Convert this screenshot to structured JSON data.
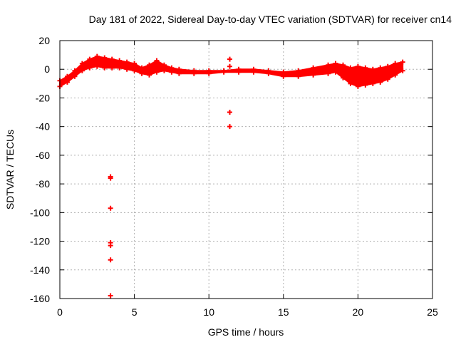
{
  "chart_data": {
    "type": "scatter",
    "title": "Day 181 of 2022, Sidereal Day-to-day VTEC variation (SDTVAR) for receiver cn14",
    "xlabel": "GPS time / hours",
    "ylabel": "SDTVAR / TECUs",
    "xlim": [
      0,
      25
    ],
    "ylim": [
      -160,
      20
    ],
    "xticks": [
      0,
      5,
      10,
      15,
      20,
      25
    ],
    "yticks": [
      -160,
      -140,
      -120,
      -100,
      -80,
      -60,
      -40,
      -20,
      0,
      20
    ],
    "grid": true,
    "marker": "plus",
    "color": "#ff0000",
    "series": [
      {
        "name": "SDTVAR band (min/max envelope)",
        "style": "band",
        "x": [
          0.0,
          0.5,
          1.0,
          1.5,
          2.0,
          2.5,
          3.0,
          3.5,
          4.0,
          4.5,
          5.0,
          5.5,
          6.0,
          6.5,
          7.0,
          7.5,
          8.0,
          9.0,
          10.0,
          11.0,
          12.0,
          13.0,
          14.0,
          15.0,
          16.0,
          17.0,
          18.0,
          18.5,
          19.0,
          19.5,
          20.0,
          20.5,
          21.0,
          21.5,
          22.0,
          22.5,
          23.0
        ],
        "upper": [
          -8,
          -5,
          -1,
          4,
          7,
          9,
          8,
          7,
          6,
          5,
          4,
          1,
          3,
          6,
          3,
          1,
          0,
          -1,
          -1,
          -1,
          0,
          0,
          -1,
          -2,
          -1,
          1,
          3,
          4,
          3,
          1,
          2,
          1,
          0,
          1,
          2,
          4,
          5
        ],
        "lower": [
          -12,
          -9,
          -5,
          -1,
          1,
          2,
          1,
          1,
          1,
          0,
          -1,
          -3,
          -4,
          -2,
          -1,
          -2,
          -3,
          -3,
          -3,
          -2,
          -2,
          -2,
          -3,
          -5,
          -5,
          -4,
          -3,
          -2,
          -6,
          -10,
          -12,
          -11,
          -10,
          -9,
          -7,
          -4,
          -1
        ]
      },
      {
        "name": "outliers",
        "style": "points",
        "x": [
          3.4,
          3.4,
          3.4,
          3.4,
          3.4,
          3.4,
          3.4,
          11.4,
          11.4,
          11.4,
          11.4
        ],
        "y": [
          -75,
          -76,
          -97,
          -121,
          -123,
          -133,
          -158,
          7,
          2,
          -30,
          -40
        ]
      }
    ]
  }
}
